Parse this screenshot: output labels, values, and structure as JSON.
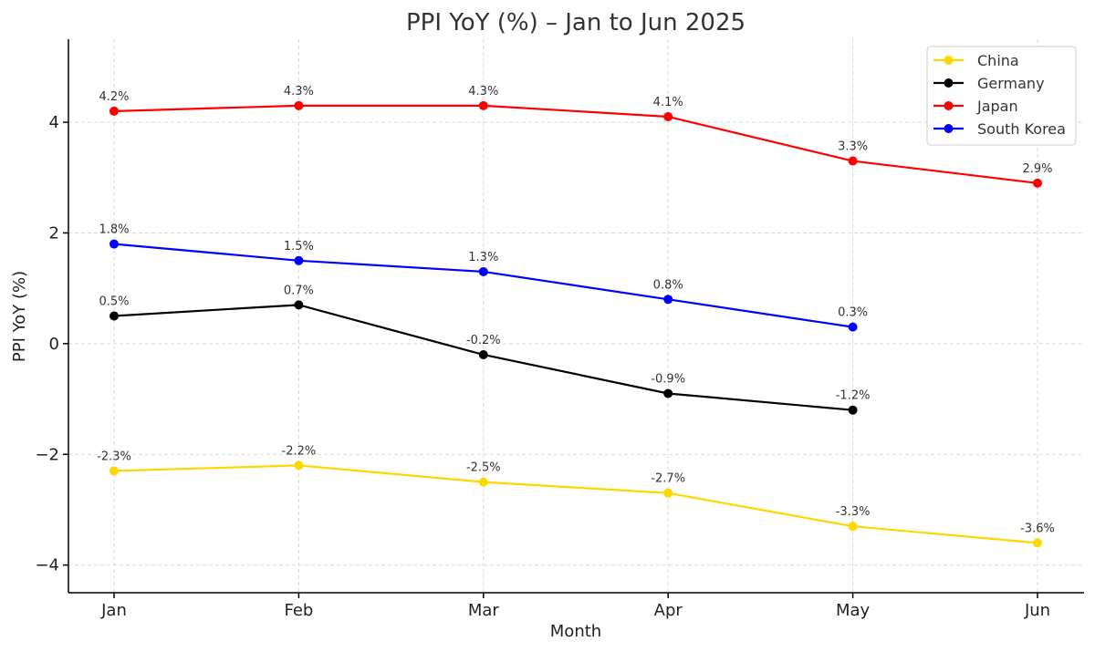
{
  "chart_data": {
    "type": "line",
    "title": "PPI YoY (%) – Jan to Jun 2025",
    "xlabel": "Month",
    "ylabel": "PPI YoY (%)",
    "categories": [
      "Jan",
      "Feb",
      "Mar",
      "Apr",
      "May",
      "Jun"
    ],
    "ylim": [
      -4.5,
      5.5
    ],
    "yticks": [
      -4,
      -2,
      0,
      2,
      4
    ],
    "ytick_labels": [
      "−4",
      "−2",
      "0",
      "2",
      "4"
    ],
    "grid": true,
    "legend_position": "top-right",
    "series": [
      {
        "name": "China",
        "color": "#FFD700",
        "values": [
          -2.3,
          -2.2,
          -2.5,
          -2.7,
          -3.3,
          -3.6
        ],
        "labels": [
          "-2.3%",
          "-2.2%",
          "-2.5%",
          "-2.7%",
          "-3.3%",
          "-3.6%"
        ]
      },
      {
        "name": "Germany",
        "color": "#000000",
        "values": [
          0.5,
          0.7,
          -0.2,
          -0.9,
          -1.2,
          null
        ],
        "labels": [
          "0.5%",
          "0.7%",
          "-0.2%",
          "-0.9%",
          "-1.2%",
          null
        ]
      },
      {
        "name": "Japan",
        "color": "#FF0000",
        "values": [
          4.2,
          4.3,
          4.3,
          4.1,
          3.3,
          2.9
        ],
        "labels": [
          "4.2%",
          "4.3%",
          "4.3%",
          "4.1%",
          "3.3%",
          "2.9%"
        ]
      },
      {
        "name": "South Korea",
        "color": "#0000FF",
        "values": [
          1.8,
          1.5,
          1.3,
          0.8,
          0.3,
          null
        ],
        "labels": [
          "1.8%",
          "1.5%",
          "1.3%",
          "0.8%",
          "0.3%",
          null
        ]
      }
    ]
  }
}
